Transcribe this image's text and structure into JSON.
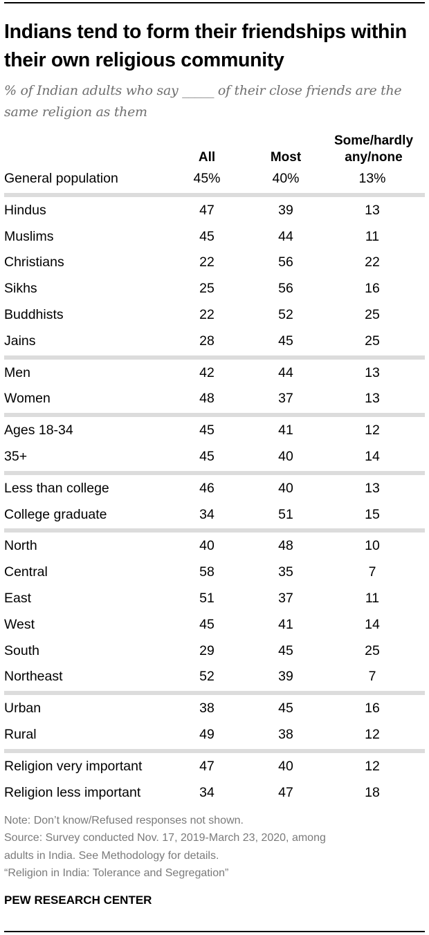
{
  "chart_data": {
    "type": "table",
    "title": "Indians tend to form their friendships within their own religious community",
    "subtitle": "% of Indian adults who say _____ of their close friends are the same religion as them",
    "columns": [
      "All",
      "Most",
      "Some/hardly any/none"
    ],
    "groups": [
      [
        {
          "label": "General population",
          "values": [
            "45%",
            "40%",
            "13%"
          ]
        }
      ],
      [
        {
          "label": "Hindus",
          "values": [
            "47",
            "39",
            "13"
          ]
        },
        {
          "label": "Muslims",
          "values": [
            "45",
            "44",
            "11"
          ]
        },
        {
          "label": "Christians",
          "values": [
            "22",
            "56",
            "22"
          ]
        },
        {
          "label": "Sikhs",
          "values": [
            "25",
            "56",
            "16"
          ]
        },
        {
          "label": "Buddhists",
          "values": [
            "22",
            "52",
            "25"
          ]
        },
        {
          "label": "Jains",
          "values": [
            "28",
            "45",
            "25"
          ]
        }
      ],
      [
        {
          "label": "Men",
          "values": [
            "42",
            "44",
            "13"
          ]
        },
        {
          "label": "Women",
          "values": [
            "48",
            "37",
            "13"
          ]
        }
      ],
      [
        {
          "label": "Ages 18-34",
          "values": [
            "45",
            "41",
            "12"
          ]
        },
        {
          "label": "35+",
          "values": [
            "45",
            "40",
            "14"
          ]
        }
      ],
      [
        {
          "label": "Less than college",
          "values": [
            "46",
            "40",
            "13"
          ]
        },
        {
          "label": "College graduate",
          "values": [
            "34",
            "51",
            "15"
          ]
        }
      ],
      [
        {
          "label": "North",
          "values": [
            "40",
            "48",
            "10"
          ]
        },
        {
          "label": "Central",
          "values": [
            "58",
            "35",
            "7"
          ]
        },
        {
          "label": "East",
          "values": [
            "51",
            "37",
            "11"
          ]
        },
        {
          "label": "West",
          "values": [
            "45",
            "41",
            "14"
          ]
        },
        {
          "label": "South",
          "values": [
            "29",
            "45",
            "25"
          ]
        },
        {
          "label": "Northeast",
          "values": [
            "52",
            "39",
            "7"
          ]
        }
      ],
      [
        {
          "label": "Urban",
          "values": [
            "38",
            "45",
            "16"
          ]
        },
        {
          "label": "Rural",
          "values": [
            "49",
            "38",
            "12"
          ]
        }
      ],
      [
        {
          "label": "Religion very important",
          "values": [
            "47",
            "40",
            "12"
          ]
        },
        {
          "label": "Religion less important",
          "values": [
            "34",
            "47",
            "18"
          ]
        }
      ]
    ]
  },
  "header": {
    "col1": "All",
    "col2": "Most",
    "col3_line1": "Some/hardly",
    "col3_line2": "any/none"
  },
  "notes": [
    "Note: Don’t know/Refused responses not shown.",
    "Source: Survey conducted Nov. 17, 2019-March 23, 2020, among",
    "adults in India. See Methodology for details.",
    "“Religion in India: Tolerance and Segregation”"
  ],
  "brand": "PEW RESEARCH CENTER",
  "colors": {
    "separator": "#dcdcdc",
    "notes": "#7a7a7a",
    "subtitle": "#6f6f6f"
  }
}
